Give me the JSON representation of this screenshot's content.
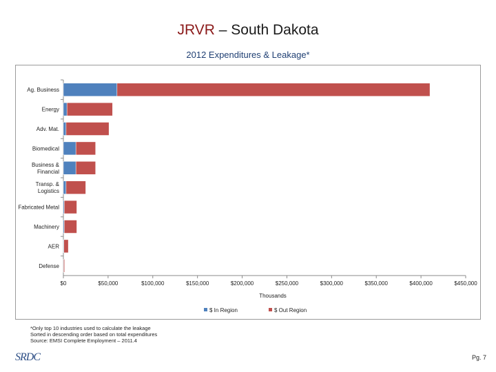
{
  "title": {
    "main": "JRVR",
    "dash": " – ",
    "rest": "South Dakota"
  },
  "subtitle": "2012 Expenditures & Leakage*",
  "chart_data": {
    "type": "bar",
    "orientation": "horizontal",
    "stacked": true,
    "categories": [
      "Ag. Business",
      "Energy",
      "Adv. Mat.",
      "Biomedical",
      "Business & Financial",
      "Transp. & Logistics",
      "Fabricated Metal",
      "Machinery",
      "AER",
      "Defense"
    ],
    "category_lines": [
      [
        "Ag. Business"
      ],
      [
        "Energy"
      ],
      [
        "Adv. Mat."
      ],
      [
        "Biomedical"
      ],
      [
        "Business &",
        "Financial"
      ],
      [
        "Transp. &",
        "Logistics"
      ],
      [
        "Fabricated Metal"
      ],
      [
        "Machinery"
      ],
      [
        "AER"
      ],
      [
        "Defense"
      ]
    ],
    "series": [
      {
        "name": "$ In Region",
        "color": "#4f81bd",
        "values": [
          60000,
          4000,
          3000,
          14000,
          14000,
          3000,
          1000,
          1000,
          500,
          300
        ]
      },
      {
        "name": "$ Out Region",
        "color": "#c0504d",
        "values": [
          350000,
          51000,
          48000,
          22000,
          22000,
          22000,
          14000,
          14000,
          5000,
          1000
        ]
      }
    ],
    "xlim": [
      0,
      450000
    ],
    "xticks": [
      "$0",
      "$50,000",
      "$100,000",
      "$150,000",
      "$200,000",
      "$250,000",
      "$300,000",
      "$350,000",
      "$400,000",
      "$450,000"
    ],
    "xlabel": "Thousands",
    "legend_position": "bottom"
  },
  "footnotes": [
    "*Only top 10 industries used to calculate the leakage",
    "Sorted in descending order based on total expenditures",
    "Source: EMSI Complete Employment – 2011.4"
  ],
  "logo_text": "SRDC",
  "page_number": "Pg. 7"
}
